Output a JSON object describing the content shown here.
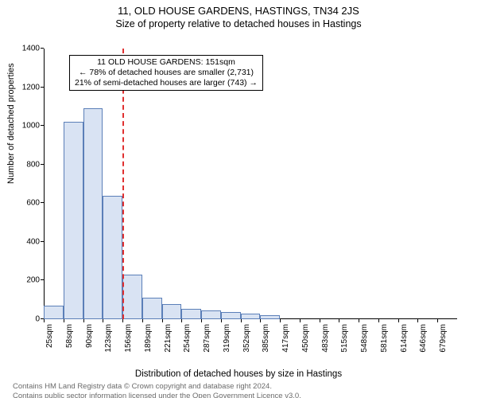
{
  "title": "11, OLD HOUSE GARDENS, HASTINGS, TN34 2JS",
  "subtitle": "Size of property relative to detached houses in Hastings",
  "ylabel": "Number of detached properties",
  "xlabel": "Distribution of detached houses by size in Hastings",
  "chart": {
    "type": "histogram",
    "ymin": 0,
    "ymax": 1400,
    "ytick_step": 200,
    "yticks": [
      0,
      200,
      400,
      600,
      800,
      1000,
      1200,
      1400
    ],
    "xcategories": [
      "25sqm",
      "58sqm",
      "90sqm",
      "123sqm",
      "156sqm",
      "189sqm",
      "221sqm",
      "254sqm",
      "287sqm",
      "319sqm",
      "352sqm",
      "385sqm",
      "417sqm",
      "450sqm",
      "483sqm",
      "515sqm",
      "548sqm",
      "581sqm",
      "614sqm",
      "646sqm",
      "679sqm"
    ],
    "bar_values": [
      70,
      1020,
      1090,
      640,
      230,
      110,
      80,
      55,
      45,
      38,
      30,
      22,
      0,
      0,
      0,
      0,
      0,
      0,
      0,
      0,
      0
    ],
    "bar_fill": "#d9e3f3",
    "bar_stroke": "#5b7fb8",
    "bar_width": 1.0,
    "background": "#ffffff",
    "axis_color": "#000000",
    "tick_fontsize": 10,
    "label_fontsize": 11,
    "title_fontsize": 13
  },
  "marker": {
    "bin_index": 4,
    "color": "#e03030",
    "dash": true
  },
  "annotation": {
    "lines": [
      "11 OLD HOUSE GARDENS: 151sqm",
      "← 78% of detached houses are smaller (2,731)",
      "21% of semi-detached houses are larger (743) →"
    ],
    "border": "#000000",
    "bg": "#ffffff"
  },
  "footer": {
    "line1": "Contains HM Land Registry data © Crown copyright and database right 2024.",
    "line2": "Contains public sector information licensed under the Open Government Licence v3.0.",
    "color": "#6b6b6b"
  }
}
